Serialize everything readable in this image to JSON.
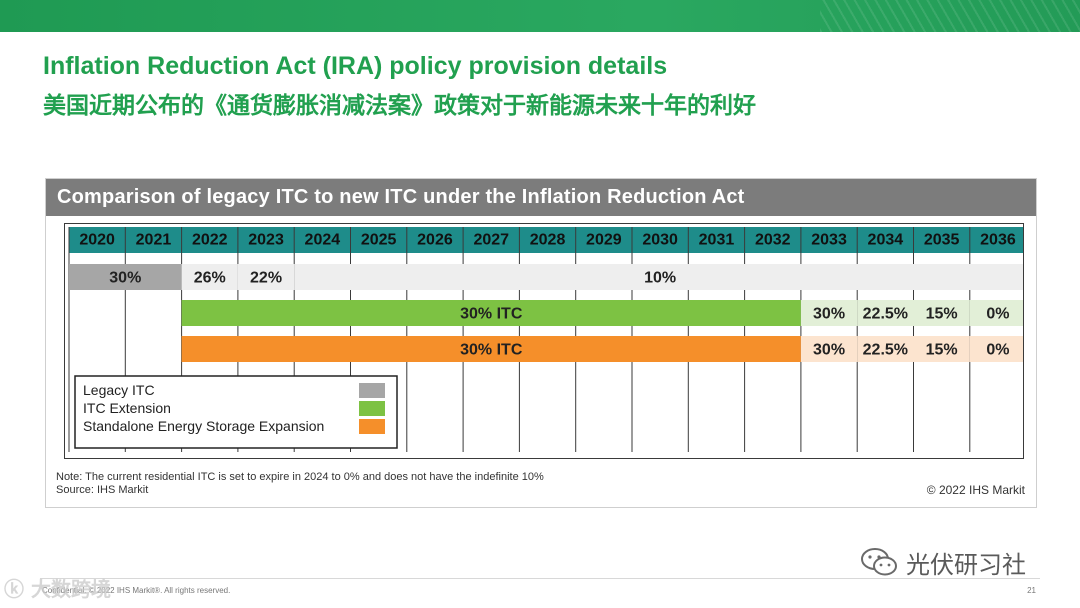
{
  "header": {
    "title_en": "Inflation Reduction Act (IRA) policy provision details",
    "title_zh": "美国近期公布的《通货膨胀消减法案》政策对于新能源未来十年的利好"
  },
  "panel": {
    "title": "Comparison of legacy ITC to new ITC under the Inflation Reduction Act",
    "note": "Note: The current residential ITC is set to expire in 2024 to 0% and does not have the indefinite 10%",
    "source": "Source: IHS Markit",
    "copyright": "© 2022 IHS Markit"
  },
  "colors": {
    "header_fill": "#1e8c8a",
    "legacy": "#a6a6a6",
    "legacy_light": "#eeeeee",
    "extension": "#7dc243",
    "extension_light": "#e2efd7",
    "storage": "#f58f2a",
    "storage_light": "#fce4cf"
  },
  "chart_data": {
    "type": "table",
    "title": "Comparison of legacy ITC to new ITC under the Inflation Reduction Act",
    "years": [
      "2020",
      "2021",
      "2022",
      "2023",
      "2024",
      "2025",
      "2026",
      "2027",
      "2028",
      "2029",
      "2030",
      "2031",
      "2032",
      "2033",
      "2034",
      "2035",
      "2036"
    ],
    "rows": [
      {
        "name": "Legacy ITC",
        "color": "#a6a6a6",
        "segments": [
          {
            "start": "2020",
            "end": "2021",
            "value": "30%",
            "fill": "#a6a6a6"
          },
          {
            "start": "2022",
            "end": "2022",
            "value": "26%",
            "fill": "#eeeeee"
          },
          {
            "start": "2023",
            "end": "2023",
            "value": "22%",
            "fill": "#eeeeee"
          },
          {
            "start": "2024",
            "end": "2036",
            "value": "10%",
            "fill": "#eeeeee"
          }
        ]
      },
      {
        "name": "ITC Extension",
        "color": "#7dc243",
        "segments": [
          {
            "start": "2022",
            "end": "2032",
            "value": "30% ITC",
            "fill": "#7dc243"
          },
          {
            "start": "2033",
            "end": "2033",
            "value": "30%",
            "fill": "#e2efd7"
          },
          {
            "start": "2034",
            "end": "2034",
            "value": "22.5%",
            "fill": "#e2efd7"
          },
          {
            "start": "2035",
            "end": "2035",
            "value": "15%",
            "fill": "#e2efd7"
          },
          {
            "start": "2036",
            "end": "2036",
            "value": "0%",
            "fill": "#e2efd7"
          }
        ]
      },
      {
        "name": "Standalone Energy Storage Expansion",
        "color": "#f58f2a",
        "segments": [
          {
            "start": "2022",
            "end": "2032",
            "value": "30% ITC",
            "fill": "#f58f2a"
          },
          {
            "start": "2033",
            "end": "2033",
            "value": "30%",
            "fill": "#fce4cf"
          },
          {
            "start": "2034",
            "end": "2034",
            "value": "22.5%",
            "fill": "#fce4cf"
          },
          {
            "start": "2035",
            "end": "2035",
            "value": "15%",
            "fill": "#fce4cf"
          },
          {
            "start": "2036",
            "end": "2036",
            "value": "0%",
            "fill": "#fce4cf"
          }
        ]
      }
    ],
    "legend": {
      "placement": "bottom-left",
      "entries": [
        {
          "label": "Legacy ITC",
          "color": "#a6a6a6"
        },
        {
          "label": "ITC Extension",
          "color": "#7dc243"
        },
        {
          "label": "Standalone  Energy Storage Expansion",
          "color": "#f58f2a"
        }
      ]
    }
  },
  "footer": {
    "left": "Confidential. © 2022 IHS Markit®. All rights reserved.",
    "page": "21",
    "watermark_left": "ⓚ 大数跨境",
    "watermark_right": "光伏研习社",
    "wechat_icon": "wechat-icon"
  }
}
